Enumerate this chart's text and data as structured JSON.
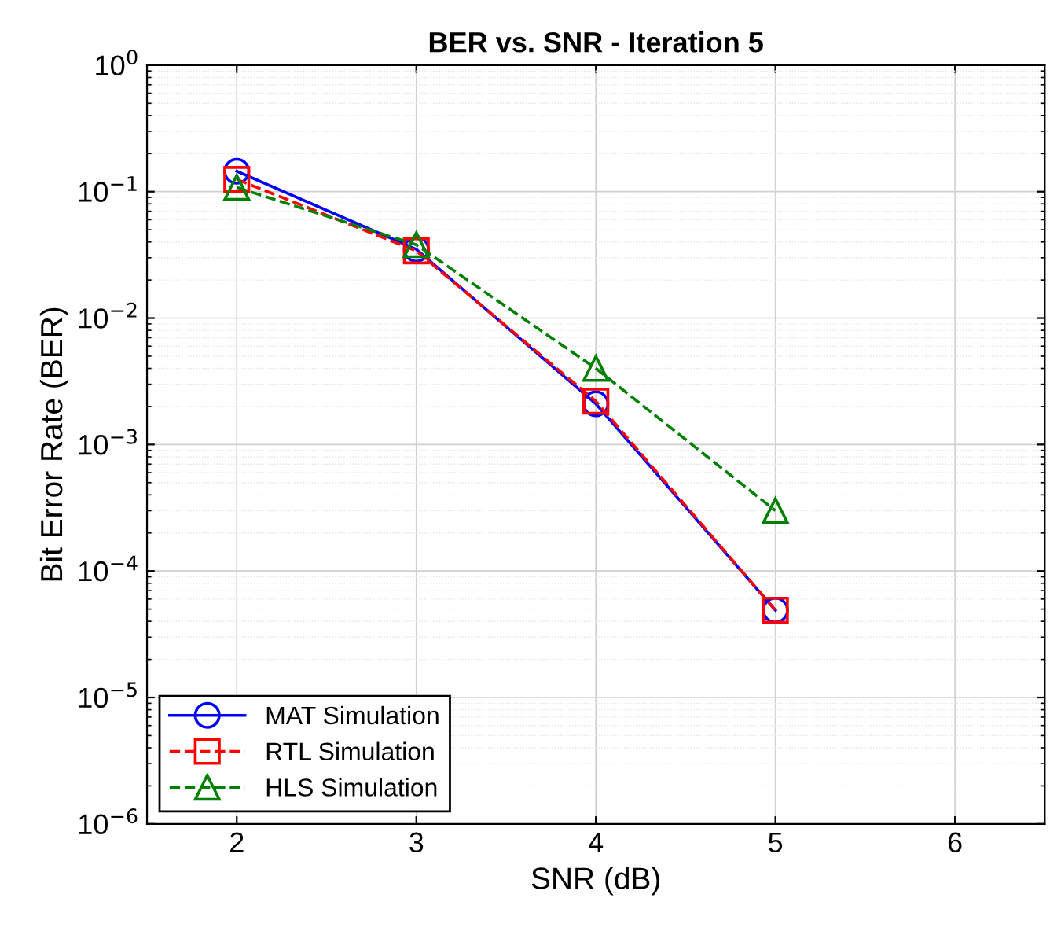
{
  "chart_data": {
    "type": "line",
    "title": "BER vs. SNR - Iteration 5",
    "xlabel": "SNR (dB)",
    "ylabel": "Bit Error Rate (BER)",
    "x": [
      2,
      3,
      4,
      5
    ],
    "series": [
      {
        "name": "MAT Simulation",
        "color": "#0000ff",
        "marker": "circle",
        "line_style": "solid",
        "values": [
          0.145,
          0.035,
          0.0021,
          4.9e-05
        ]
      },
      {
        "name": "RTL Simulation",
        "color": "#ff0000",
        "marker": "square",
        "line_style": "dashed",
        "values": [
          0.125,
          0.034,
          0.0022,
          4.9e-05
        ]
      },
      {
        "name": "HLS Simulation",
        "color": "#008000",
        "marker": "triangle",
        "line_style": "dashed",
        "values": [
          0.108,
          0.038,
          0.004,
          0.0003
        ]
      }
    ],
    "log": "y",
    "xlim": [
      1.5,
      6.5
    ],
    "xticks": [
      2,
      3,
      4,
      5,
      6
    ],
    "ylim": [
      1e-06,
      1
    ],
    "yticks": [
      {
        "value": 1e-06,
        "label": "10$^{−6}$"
      },
      {
        "value": 1e-05,
        "label": "10$^{−5}$"
      },
      {
        "value": 0.0001,
        "label": "10$^{−4}$"
      },
      {
        "value": 0.001,
        "label": "10$^{−3}$"
      },
      {
        "value": 0.01,
        "label": "10$^{−2}$"
      },
      {
        "value": 0.1,
        "label": "10$^{−1}$"
      },
      {
        "value": 1,
        "label": "10$^{0}$"
      }
    ],
    "grid": true,
    "legend": "bottom left"
  }
}
